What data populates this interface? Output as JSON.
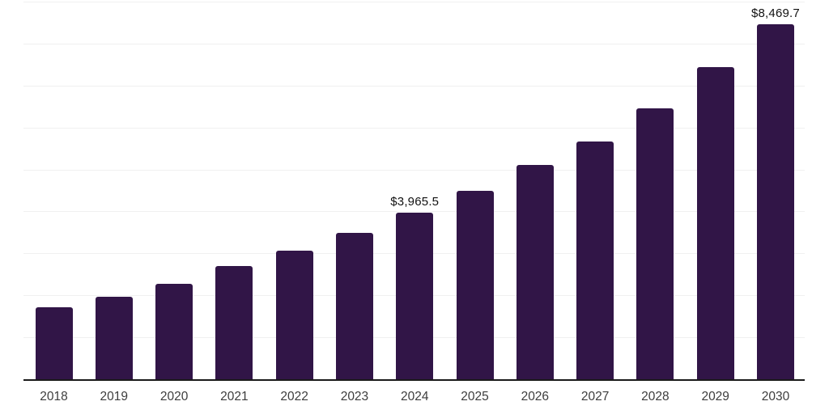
{
  "chart_data": {
    "type": "bar",
    "title": "",
    "xlabel": "",
    "ylabel": "",
    "categories": [
      "2018",
      "2019",
      "2020",
      "2021",
      "2022",
      "2023",
      "2024",
      "2025",
      "2026",
      "2027",
      "2028",
      "2029",
      "2030"
    ],
    "values": [
      1720,
      1970,
      2270,
      2700,
      3070,
      3490,
      3965.5,
      4495,
      5110,
      5660,
      6460,
      7430,
      8469.7
    ],
    "data_labels": [
      "",
      "",
      "",
      "",
      "",
      "",
      "$3,965.5",
      "",
      "",
      "",
      "",
      "",
      "$8,469.7"
    ],
    "ylim": [
      0,
      9000
    ],
    "gridline_step": 1000,
    "grid": "horizontal-only",
    "legend": "none",
    "y_axis_labels_visible": false,
    "colors": {
      "bar": "#311547",
      "axis_line": "#1a1a1a",
      "gridline": "#f0f0f0",
      "value_label": "#111111",
      "tick_label": "#3d3d3d",
      "background": "#ffffff"
    }
  }
}
